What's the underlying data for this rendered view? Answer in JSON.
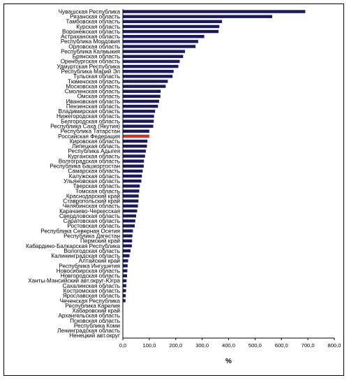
{
  "chart_data": {
    "type": "bar",
    "orientation": "horizontal",
    "categories": [
      "Чувашская Республика",
      "Рязанская область",
      "Тамбовская область",
      "Курская область",
      "Воронежская область",
      "Астраханская область",
      "Республика Мордовия",
      "Орловская область",
      "Республика Калмыкия",
      "Брянская область",
      "Оренбургская область",
      "Удмуртская Республика",
      "Республика Марий Эл",
      "Тульская область",
      "Тюменская область",
      "Московская область",
      "Смоленская область",
      "Омская область",
      "Ивановская область",
      "Пензенская область",
      "Владимирская область",
      "Нижегородская область",
      "Белгородская область",
      "Республика Саха (Якутия)",
      "Республика Татарстан",
      "Российская Федерация",
      "Кировская область",
      "Липецкая область",
      "Республика Адыгея",
      "Курганская область",
      "Волгоградская область",
      "Республика Башкортостан",
      "Самарская область",
      "Калужская область",
      "Ульяновская область",
      "Тверская область",
      "Томская область",
      "Краснодарский край",
      "Ставропольский край",
      "Челябинская область",
      "Карачаево-Черкесская",
      "Свердловская область",
      "Саратовская область",
      "Ростовская область",
      "Республика Северная Осетия",
      "Республика Дагестан",
      "Пермский край",
      "Кабардино-Балкарская Республика",
      "Вологодская область",
      "Калининградская область",
      "Алтайский край",
      "Республика Ингушетия",
      "Новосибирская область",
      "Новгородская область",
      "Ханты-Мансийский авт.округ-Югра",
      "Сахалинская область",
      "Костромская область",
      "Ярославская область",
      "Чеченская Республика",
      "Республика Карелия",
      "Хабаровский край",
      "Архангельская область",
      "Псковская область",
      "Республика Коми",
      "Ленинградская область",
      "Ненецкий авт.округ"
    ],
    "values": [
      690,
      565,
      375,
      365,
      362,
      308,
      285,
      275,
      235,
      228,
      215,
      210,
      192,
      188,
      170,
      162,
      143,
      142,
      137,
      133,
      122,
      118,
      117,
      115,
      100,
      100,
      93,
      91,
      87,
      84,
      80,
      79,
      75,
      72,
      70,
      64,
      62,
      60,
      59,
      57,
      54,
      50,
      47,
      45,
      38,
      36,
      35,
      34,
      29,
      25,
      20,
      18,
      17,
      16,
      14,
      13,
      12,
      11,
      10,
      0,
      0,
      0,
      0,
      0,
      0,
      0
    ],
    "highlight_category": "Российская Федерация",
    "colors": {
      "bar": "#1a1a5c",
      "highlight": "#c0392b"
    },
    "xlabel": "%",
    "xlim": [
      0,
      800
    ],
    "x_ticks": [
      "0,0",
      "100,0",
      "200,0",
      "300,0",
      "400,0",
      "500,0",
      "600,0",
      "700,0",
      "800,0"
    ],
    "grid": false,
    "legend": "none"
  }
}
